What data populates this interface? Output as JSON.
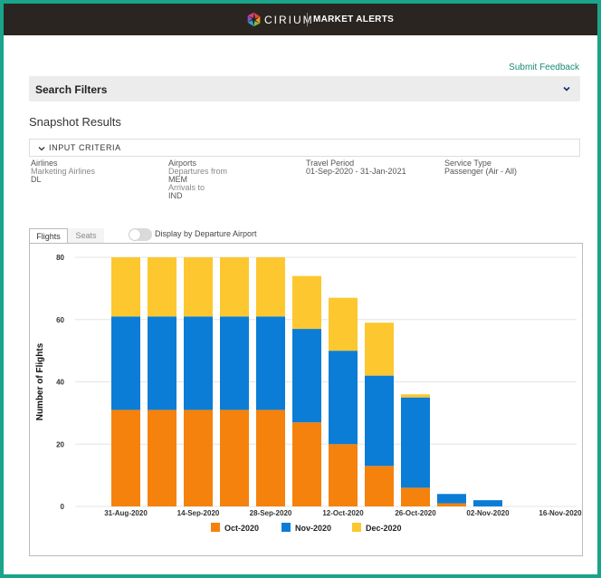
{
  "app": {
    "brand": "CIRIUM",
    "product": "MARKET ALERTS",
    "submit_feedback": "Submit Feedback"
  },
  "filters": {
    "title": "Search Filters"
  },
  "snapshot": {
    "title": "Snapshot Results"
  },
  "criteria": {
    "header": "INPUT CRITERIA",
    "airlines": {
      "label": "Airlines",
      "sub": "Marketing Airlines",
      "value": "DL"
    },
    "airports": {
      "label": "Airports",
      "dep_label": "Departures from",
      "dep_value": "MEM",
      "arr_label": "Arrivals to",
      "arr_value": "IND"
    },
    "travel": {
      "label": "Travel Period",
      "value": "01-Sep-2020 - 31-Jan-2021"
    },
    "service": {
      "label": "Service Type",
      "value": "Passenger (Air - All)"
    }
  },
  "tabs": {
    "flights": "Flights",
    "seats": "Seats",
    "active": "Flights"
  },
  "toggle": {
    "label": "Display by Departure Airport",
    "on": false
  },
  "chart_data": {
    "type": "bar",
    "stacked": true,
    "ylabel": "Number of Flights",
    "xlabel": "",
    "ylim": [
      0,
      80
    ],
    "yticks": [
      0,
      20,
      40,
      60,
      80
    ],
    "grid": true,
    "legend_position": "bottom",
    "x_tick_labels": [
      "31-Aug-2020",
      "14-Sep-2020",
      "28-Sep-2020",
      "12-Oct-2020",
      "26-Oct-2020",
      "02-Nov-2020",
      "16-Nov-2020"
    ],
    "series": [
      {
        "name": "Oct-2020",
        "color": "#f5820d",
        "values": [
          31,
          31,
          31,
          31,
          31,
          27,
          20,
          13,
          6,
          1,
          0,
          0,
          0
        ]
      },
      {
        "name": "Nov-2020",
        "color": "#0b7dd6",
        "values": [
          30,
          30,
          30,
          30,
          30,
          30,
          30,
          29,
          29,
          3,
          2,
          0,
          0
        ]
      },
      {
        "name": "Dec-2020",
        "color": "#fcc72f",
        "values": [
          19,
          19,
          19,
          19,
          19,
          17,
          17,
          17,
          1,
          0,
          0,
          0,
          0
        ]
      }
    ]
  }
}
